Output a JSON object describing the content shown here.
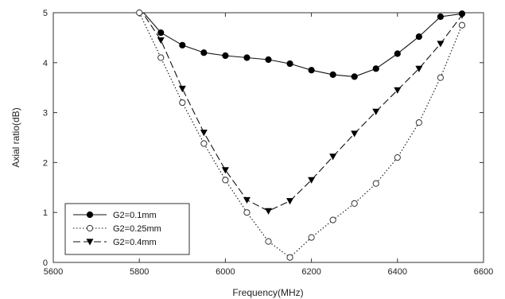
{
  "chart_data": {
    "type": "line",
    "xlabel": "Frequency(MHz)",
    "ylabel": "Axial ratio(dB)",
    "xlim": [
      5600,
      6600
    ],
    "ylim": [
      0,
      5
    ],
    "xticks": [
      5600,
      5800,
      6000,
      6200,
      6400,
      6600
    ],
    "yticks": [
      0,
      1,
      2,
      3,
      4,
      5
    ],
    "grid": false,
    "legend_position": "bottom-left",
    "series": [
      {
        "name": "G2=0.1mm",
        "marker": "filled-circle",
        "line": "solid",
        "x": [
          5800,
          5850,
          5900,
          5950,
          6000,
          6050,
          6100,
          6150,
          6200,
          6250,
          6300,
          6350,
          6400,
          6450,
          6500,
          6550
        ],
        "y": [
          5.1,
          4.6,
          4.35,
          4.2,
          4.14,
          4.1,
          4.06,
          3.98,
          3.85,
          3.76,
          3.72,
          3.88,
          4.18,
          4.52,
          4.92,
          4.98
        ]
      },
      {
        "name": "G2=0.25mm",
        "marker": "open-circle",
        "line": "dotted",
        "x": [
          5800,
          5850,
          5900,
          5950,
          6000,
          6050,
          6100,
          6150,
          6200,
          6250,
          6300,
          6350,
          6400,
          6450,
          6500,
          6550
        ],
        "y": [
          5.0,
          4.1,
          3.2,
          2.38,
          1.65,
          1.0,
          0.42,
          0.1,
          0.5,
          0.85,
          1.18,
          1.58,
          2.1,
          2.8,
          3.7,
          4.75
        ]
      },
      {
        "name": "G2=0.4mm",
        "marker": "filled-triangle-down",
        "line": "dashed",
        "x": [
          5800,
          5850,
          5900,
          5950,
          6000,
          6050,
          6100,
          6150,
          6200,
          6250,
          6300,
          6350,
          6400,
          6450,
          6500,
          6550
        ],
        "y": [
          5.1,
          4.45,
          3.48,
          2.6,
          1.85,
          1.25,
          1.03,
          1.23,
          1.65,
          2.12,
          2.58,
          3.02,
          3.45,
          3.88,
          4.38,
          4.95
        ]
      }
    ]
  }
}
